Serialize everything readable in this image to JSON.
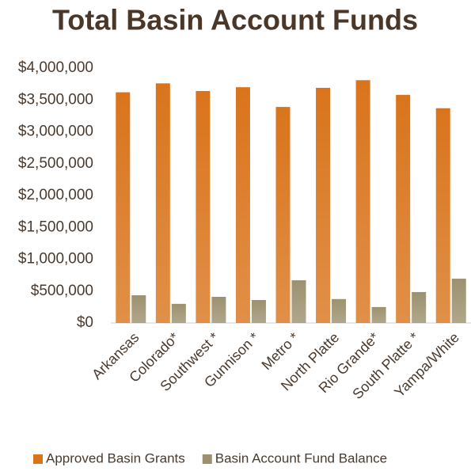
{
  "chart_data": {
    "type": "bar",
    "title": "Total Basin Account Funds",
    "categories": [
      "Arkansas",
      "Colorado*",
      "Southwest *",
      "Gunnison *",
      "Metro *",
      "North Platte",
      "Rio Grande*",
      "South Platte *",
      "Yampa/White"
    ],
    "series": [
      {
        "name": "Approved Basin Grants",
        "color": "#d9741b",
        "values": [
          3620000,
          3760000,
          3640000,
          3700000,
          3390000,
          3690000,
          3810000,
          3580000,
          3370000
        ]
      },
      {
        "name": "Basin Account Fund Balance",
        "color": "#9c916f",
        "values": [
          435000,
          300000,
          410000,
          360000,
          670000,
          375000,
          250000,
          485000,
          695000
        ]
      }
    ],
    "ylim": [
      0,
      4000000
    ],
    "yticks": [
      {
        "value": 0,
        "label": "$0"
      },
      {
        "value": 500000,
        "label": "$500,000"
      },
      {
        "value": 1000000,
        "label": "$1,000,000"
      },
      {
        "value": 1500000,
        "label": "$1,500,000"
      },
      {
        "value": 2000000,
        "label": "$2,000,000"
      },
      {
        "value": 2500000,
        "label": "$2,500,000"
      },
      {
        "value": 3000000,
        "label": "$3,000,000"
      },
      {
        "value": 3500000,
        "label": "$3,500,000"
      },
      {
        "value": 4000000,
        "label": "$4,000,000"
      }
    ],
    "grid": false,
    "legend": "bottom"
  }
}
